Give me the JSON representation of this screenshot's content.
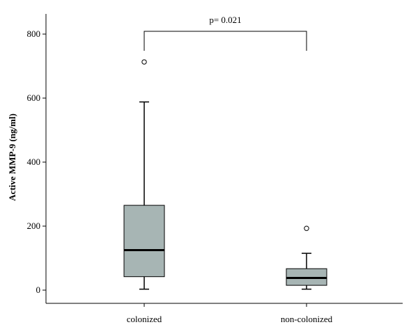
{
  "chart_data": {
    "type": "box",
    "ylabel": "Active MMP-9 (ng/ml)",
    "ylim": [
      -40,
      830
    ],
    "yticks": [
      0,
      200,
      400,
      600,
      800
    ],
    "categories": [
      "colonized",
      "non-colonized"
    ],
    "boxes": [
      {
        "name": "colonized",
        "min": 3,
        "q1": 42,
        "median": 125,
        "q3": 265,
        "max": 588,
        "outliers": [
          713
        ]
      },
      {
        "name": "non-colonized",
        "min": 3,
        "q1": 15,
        "median": 38,
        "q3": 67,
        "max": 115,
        "outliers": [
          193
        ]
      }
    ],
    "annotation": {
      "label": "p= 0.021",
      "from": "colonized",
      "to": "non-colonized"
    },
    "grid": false,
    "box_color": "#a7b5b4"
  }
}
